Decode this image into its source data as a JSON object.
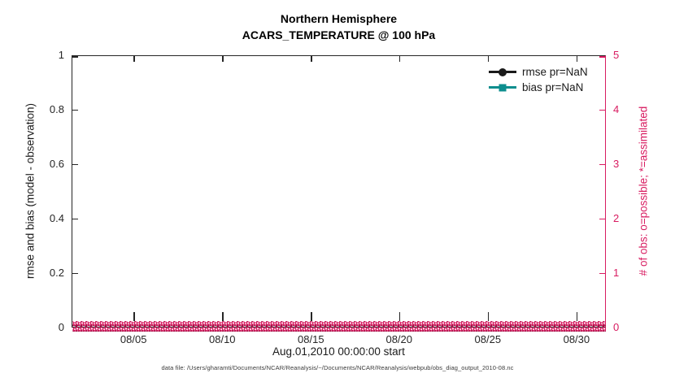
{
  "figure": {
    "title_line1": "Northern Hemisphere",
    "title_line2": "ACARS_TEMPERATURE @ 100 hPa",
    "xlabel": "Aug.01,2010 00:00:00 start",
    "left_axis_label": "rmse and bias (model - observation)",
    "right_axis_label": "# of obs: o=possible; *=assimilated",
    "footer": "data file: /Users/gharamti/Documents/NCAR/Reanalysis/~/Documents/NCAR/Reanalysis/webpub/obs_diag_output_2010-08.nc"
  },
  "legend": [
    {
      "label": "rmse pr=NaN",
      "marker": "circle",
      "color": "#1a1a1a"
    },
    {
      "label": "bias pr=NaN",
      "marker": "square",
      "color": "#0d8e8e"
    }
  ],
  "colors": {
    "axis_dark": "#262626",
    "obs_pink": "#d81b60",
    "obs_pink_dark": "#9c1044",
    "bias_teal": "#0d8e8e"
  },
  "chart_data": {
    "type": "line",
    "title": "Northern Hemisphere",
    "subtitle": "ACARS_TEMPERATURE @ 100 hPa",
    "xlabel": "Aug.01,2010 00:00:00 start",
    "x_ticks": [
      "08/05",
      "08/10",
      "08/15",
      "08/20",
      "08/25",
      "08/30"
    ],
    "x_tick_pos_pct": [
      11.6,
      28.2,
      44.8,
      61.3,
      77.9,
      94.5
    ],
    "x_range": [
      "2010-08-01 00:00:00",
      "2010-09-01 00:00:00"
    ],
    "left_axis": {
      "label": "rmse and bias (model - observation)",
      "ticks": [
        0,
        0.2,
        0.4,
        0.6,
        0.8,
        1
      ],
      "tick_labels": [
        "0",
        "0.2",
        "0.4",
        "0.6",
        "0.8",
        "1"
      ],
      "range": [
        0,
        1
      ],
      "color": "#262626"
    },
    "right_axis": {
      "label": "# of obs: o=possible; *=assimilated",
      "ticks": [
        0,
        1,
        2,
        3,
        4,
        5
      ],
      "tick_labels": [
        "0",
        "1",
        "2",
        "3",
        "4",
        "5"
      ],
      "range": [
        0,
        5
      ],
      "color": "#d81b60"
    },
    "series": [
      {
        "name": "rmse pr=NaN",
        "style": "line+filled-circle",
        "color": "#1a1a1a",
        "values": "NaN - no curve drawn"
      },
      {
        "name": "bias pr=NaN",
        "style": "line+filled-square",
        "color": "#0d8e8e",
        "values": "NaN - no curve drawn"
      },
      {
        "name": "# of obs possible (o markers)",
        "color": "#d81b60",
        "constant_value": 0,
        "note": "dense row of o markers along y=0 across the full month"
      },
      {
        "name": "# of obs assimilated (* markers)",
        "color": "#d81b60",
        "constant_value": 0,
        "note": "dense row of * markers along y=0 across the full month"
      }
    ],
    "grid": false,
    "legend_position": "top-right inside plot, no box"
  }
}
